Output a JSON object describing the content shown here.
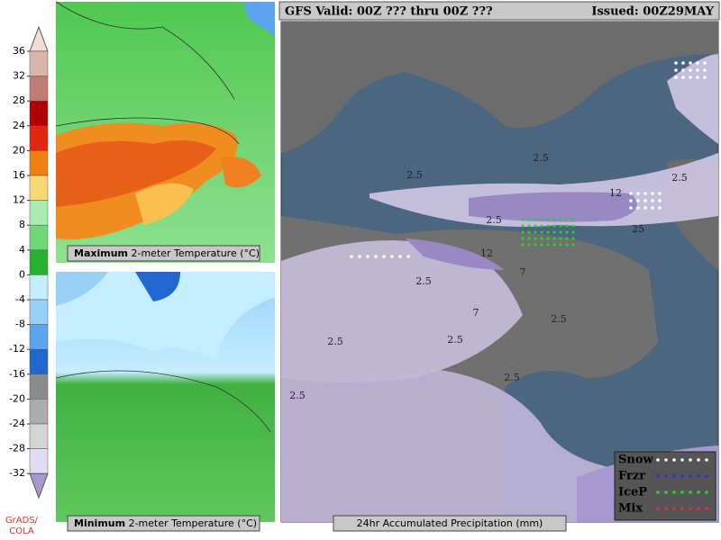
{
  "colorbar": {
    "ticks": [
      36,
      32,
      28,
      24,
      20,
      16,
      12,
      8,
      4,
      0,
      -4,
      -8,
      -12,
      -16,
      -20,
      -24,
      -28,
      -32
    ],
    "colors": [
      "#f4dcd4",
      "#d8b4aa",
      "#c07c74",
      "#b00000",
      "#e02810",
      "#f08010",
      "#f8d870",
      "#a8ecb0",
      "#70d878",
      "#28b030",
      "#c4eeff",
      "#98d0f8",
      "#5ca4ee",
      "#2068d0",
      "#8c8c8c",
      "#acacac",
      "#d4d4d4",
      "#e2dcf2",
      "#a898d0"
    ]
  },
  "credit": [
    "GrADS/",
    "COLA"
  ],
  "max_panel": {
    "label_bold": "Maximum",
    "label_rest": "2-meter Temperature (°C)"
  },
  "min_panel": {
    "label_bold": "Minimum",
    "label_rest": "2-meter Temperature (°C)"
  },
  "precip_panel": {
    "header_left": "GFS Valid: 00Z ??? thru 00Z ???",
    "header_right": "Issued: 00Z29MAY",
    "label": "24hr Accumulated Precipitation (mm)",
    "contour_labels": [
      "2.5",
      "2.5",
      "2.5",
      "2.5",
      "2.5",
      "7",
      "12",
      "12",
      "2.5",
      "2.5",
      "25",
      "2.5",
      "2.5",
      "7",
      "2.5"
    ],
    "legend": [
      {
        "name": "Snow",
        "color": "#ffffff"
      },
      {
        "name": "Frzr",
        "color": "#3030d0"
      },
      {
        "name": "IceP",
        "color": "#30d030"
      },
      {
        "name": "Mix",
        "color": "#e03040"
      }
    ]
  }
}
